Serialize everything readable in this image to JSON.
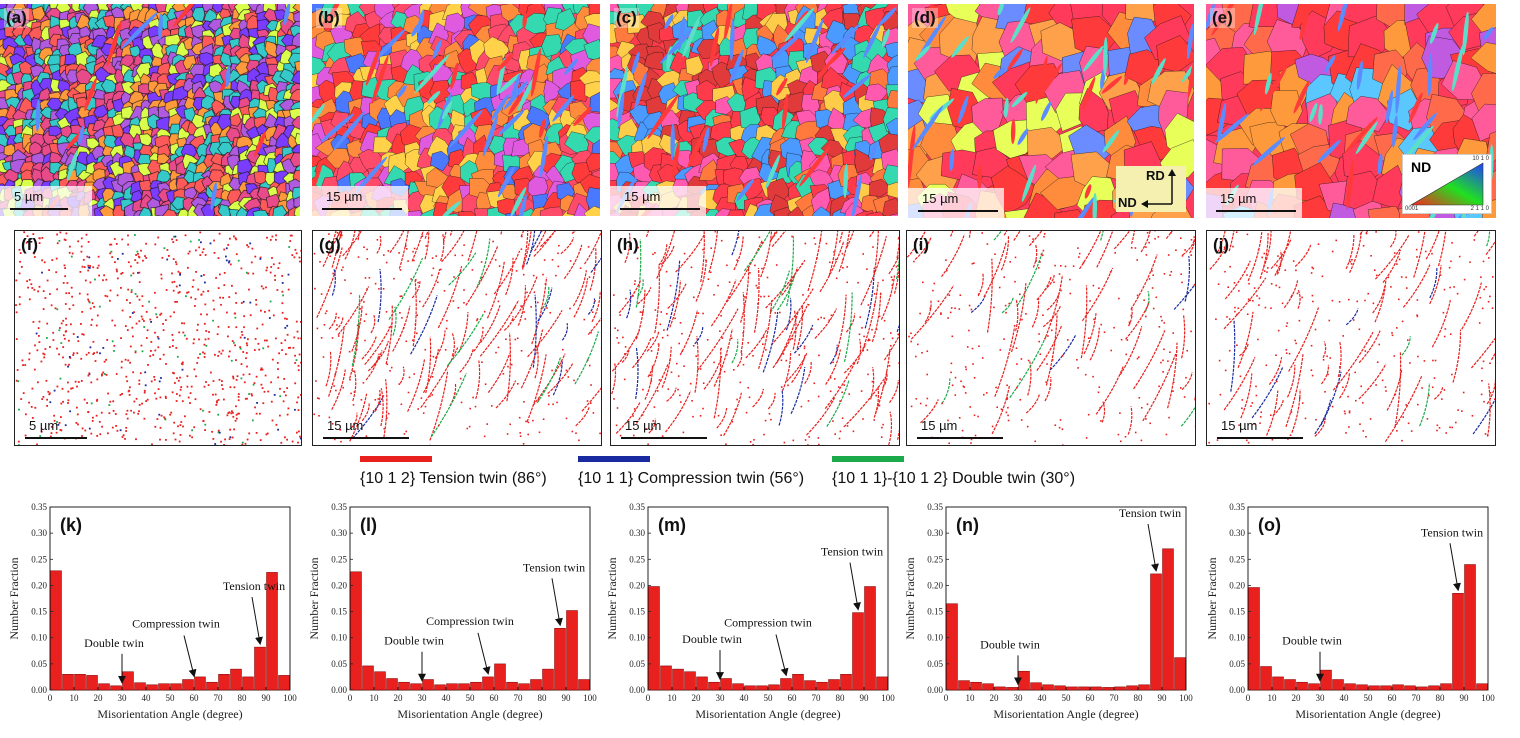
{
  "ebsd_panels": [
    {
      "label": "(a)",
      "scale": "5 µm",
      "palette": [
        "#e84a8a",
        "#7a3cff",
        "#ff9a3c",
        "#d9ff4a",
        "#35c9c9",
        "#b05ae0",
        "#ff5a5a"
      ]
    },
    {
      "label": "(b)",
      "scale": "15 µm",
      "palette": [
        "#ff4a6a",
        "#ff8c3c",
        "#4a78ff",
        "#e05ae0",
        "#ffd24a",
        "#35d9b0",
        "#ff3a3a"
      ]
    },
    {
      "label": "(c)",
      "scale": "15 µm",
      "palette": [
        "#ff3a4a",
        "#ff7a3c",
        "#ff5ab0",
        "#4a9aff",
        "#35d9b0",
        "#ffcc4a",
        "#e03a3a"
      ]
    },
    {
      "label": "(d)",
      "scale": "15 µm",
      "palette": [
        "#ff3a5a",
        "#ff8c3c",
        "#ff5a9a",
        "#e8ff5a",
        "#6a8cff",
        "#ff3a3a",
        "#ffa04a"
      ]
    },
    {
      "label": "(e)",
      "scale": "15 µm",
      "palette": [
        "#ff3a5a",
        "#ff6a4a",
        "#ff5a9a",
        "#c05ae0",
        "#ff9a3c",
        "#5ac8ff",
        "#ff3a3a"
      ]
    }
  ],
  "orientation_key": {
    "title": "ND",
    "tick_top": "10 1 0",
    "tick_left": "0001",
    "tick_right": "2 1 1 0"
  },
  "frame_labels": {
    "rd": "RD",
    "nd": "ND"
  },
  "twin_panels": [
    {
      "label": "(f)",
      "scale": "5 µm"
    },
    {
      "label": "(g)",
      "scale": "15 µm"
    },
    {
      "label": "(h)",
      "scale": "15 µm"
    },
    {
      "label": "(i)",
      "scale": "15 µm"
    },
    {
      "label": "(j)",
      "scale": "15 µm"
    }
  ],
  "legend": [
    {
      "text": "{10 1 2} Tension twin (86°)",
      "color": "#e8201e"
    },
    {
      "text": "{10 1 1} Compression twin (56°)",
      "color": "#1a2aa0"
    },
    {
      "text": "{10 1 1}-{10 1 2} Double twin (30°)",
      "color": "#1aaa4a"
    }
  ],
  "chart_data": [
    {
      "type": "bar",
      "label": "(k)",
      "xlabel": "Misorientation Angle (degree)",
      "ylabel": "Number Fraction",
      "xlim": [
        0,
        100
      ],
      "ylim": [
        0,
        0.35
      ],
      "bar_color": "#e8201e",
      "x": [
        2.5,
        7.5,
        12.5,
        17.5,
        22.5,
        27.5,
        32.5,
        37.5,
        42.5,
        47.5,
        52.5,
        57.5,
        62.5,
        67.5,
        72.5,
        77.5,
        82.5,
        87.5,
        92.5,
        97.5
      ],
      "values": [
        0.228,
        0.03,
        0.03,
        0.028,
        0.012,
        0.008,
        0.035,
        0.014,
        0.01,
        0.012,
        0.012,
        0.02,
        0.025,
        0.015,
        0.03,
        0.04,
        0.025,
        0.082,
        0.225,
        0.028
      ],
      "annotations": [
        {
          "text": "Double twin",
          "x": 30
        },
        {
          "text": "Compression twin",
          "x": 60
        },
        {
          "text": "Tension twin",
          "x": 87.5
        }
      ]
    },
    {
      "type": "bar",
      "label": "(l)",
      "xlabel": "Misorientation Angle (degree)",
      "ylabel": "Number Fraction",
      "xlim": [
        0,
        100
      ],
      "ylim": [
        0,
        0.35
      ],
      "bar_color": "#e8201e",
      "x": [
        2.5,
        7.5,
        12.5,
        17.5,
        22.5,
        27.5,
        32.5,
        37.5,
        42.5,
        47.5,
        52.5,
        57.5,
        62.5,
        67.5,
        72.5,
        77.5,
        82.5,
        87.5,
        92.5,
        97.5
      ],
      "values": [
        0.226,
        0.046,
        0.035,
        0.022,
        0.015,
        0.012,
        0.02,
        0.01,
        0.012,
        0.012,
        0.015,
        0.025,
        0.05,
        0.015,
        0.012,
        0.02,
        0.04,
        0.118,
        0.152,
        0.02
      ],
      "annotations": [
        {
          "text": "Double twin",
          "x": 30
        },
        {
          "text": "Compression twin",
          "x": 57.5
        },
        {
          "text": "Tension twin",
          "x": 87.5
        }
      ]
    },
    {
      "type": "bar",
      "label": "(m)",
      "xlabel": "Misorientation Angle (degree)",
      "ylabel": "Number Fraction",
      "xlim": [
        0,
        100
      ],
      "ylim": [
        0,
        0.35
      ],
      "bar_color": "#e8201e",
      "x": [
        2.5,
        7.5,
        12.5,
        17.5,
        22.5,
        27.5,
        32.5,
        37.5,
        42.5,
        47.5,
        52.5,
        57.5,
        62.5,
        67.5,
        72.5,
        77.5,
        82.5,
        87.5,
        92.5,
        97.5
      ],
      "values": [
        0.198,
        0.046,
        0.04,
        0.035,
        0.025,
        0.015,
        0.022,
        0.012,
        0.008,
        0.008,
        0.01,
        0.022,
        0.03,
        0.018,
        0.015,
        0.02,
        0.03,
        0.148,
        0.198,
        0.025
      ],
      "annotations": [
        {
          "text": "Double twin",
          "x": 30
        },
        {
          "text": "Compression twin",
          "x": 57.5
        },
        {
          "text": "Tension twin",
          "x": 87.5
        }
      ]
    },
    {
      "type": "bar",
      "label": "(n)",
      "xlabel": "Misorientation Angle (degree)",
      "ylabel": "Number Fraction",
      "xlim": [
        0,
        100
      ],
      "ylim": [
        0,
        0.35
      ],
      "bar_color": "#e8201e",
      "x": [
        2.5,
        7.5,
        12.5,
        17.5,
        22.5,
        27.5,
        32.5,
        37.5,
        42.5,
        47.5,
        52.5,
        57.5,
        62.5,
        67.5,
        72.5,
        77.5,
        82.5,
        87.5,
        92.5,
        97.5
      ],
      "values": [
        0.165,
        0.018,
        0.015,
        0.012,
        0.006,
        0.005,
        0.036,
        0.014,
        0.01,
        0.008,
        0.006,
        0.006,
        0.006,
        0.005,
        0.006,
        0.008,
        0.01,
        0.222,
        0.27,
        0.062
      ],
      "annotations": [
        {
          "text": "Double twin",
          "x": 30
        },
        {
          "text": "Tension twin",
          "x": 87.5
        }
      ]
    },
    {
      "type": "bar",
      "label": "(o)",
      "xlabel": "Misorientation Angle (degree)",
      "ylabel": "Number Fraction",
      "xlim": [
        0,
        100
      ],
      "ylim": [
        0,
        0.35
      ],
      "bar_color": "#e8201e",
      "x": [
        2.5,
        7.5,
        12.5,
        17.5,
        22.5,
        27.5,
        32.5,
        37.5,
        42.5,
        47.5,
        52.5,
        57.5,
        62.5,
        67.5,
        72.5,
        77.5,
        82.5,
        87.5,
        92.5,
        97.5
      ],
      "values": [
        0.196,
        0.045,
        0.025,
        0.02,
        0.015,
        0.012,
        0.038,
        0.02,
        0.012,
        0.01,
        0.008,
        0.008,
        0.01,
        0.008,
        0.006,
        0.008,
        0.012,
        0.185,
        0.24,
        0.012
      ],
      "annotations": [
        {
          "text": "Double twin",
          "x": 30
        },
        {
          "text": "Tension twin",
          "x": 87.5
        }
      ]
    }
  ]
}
